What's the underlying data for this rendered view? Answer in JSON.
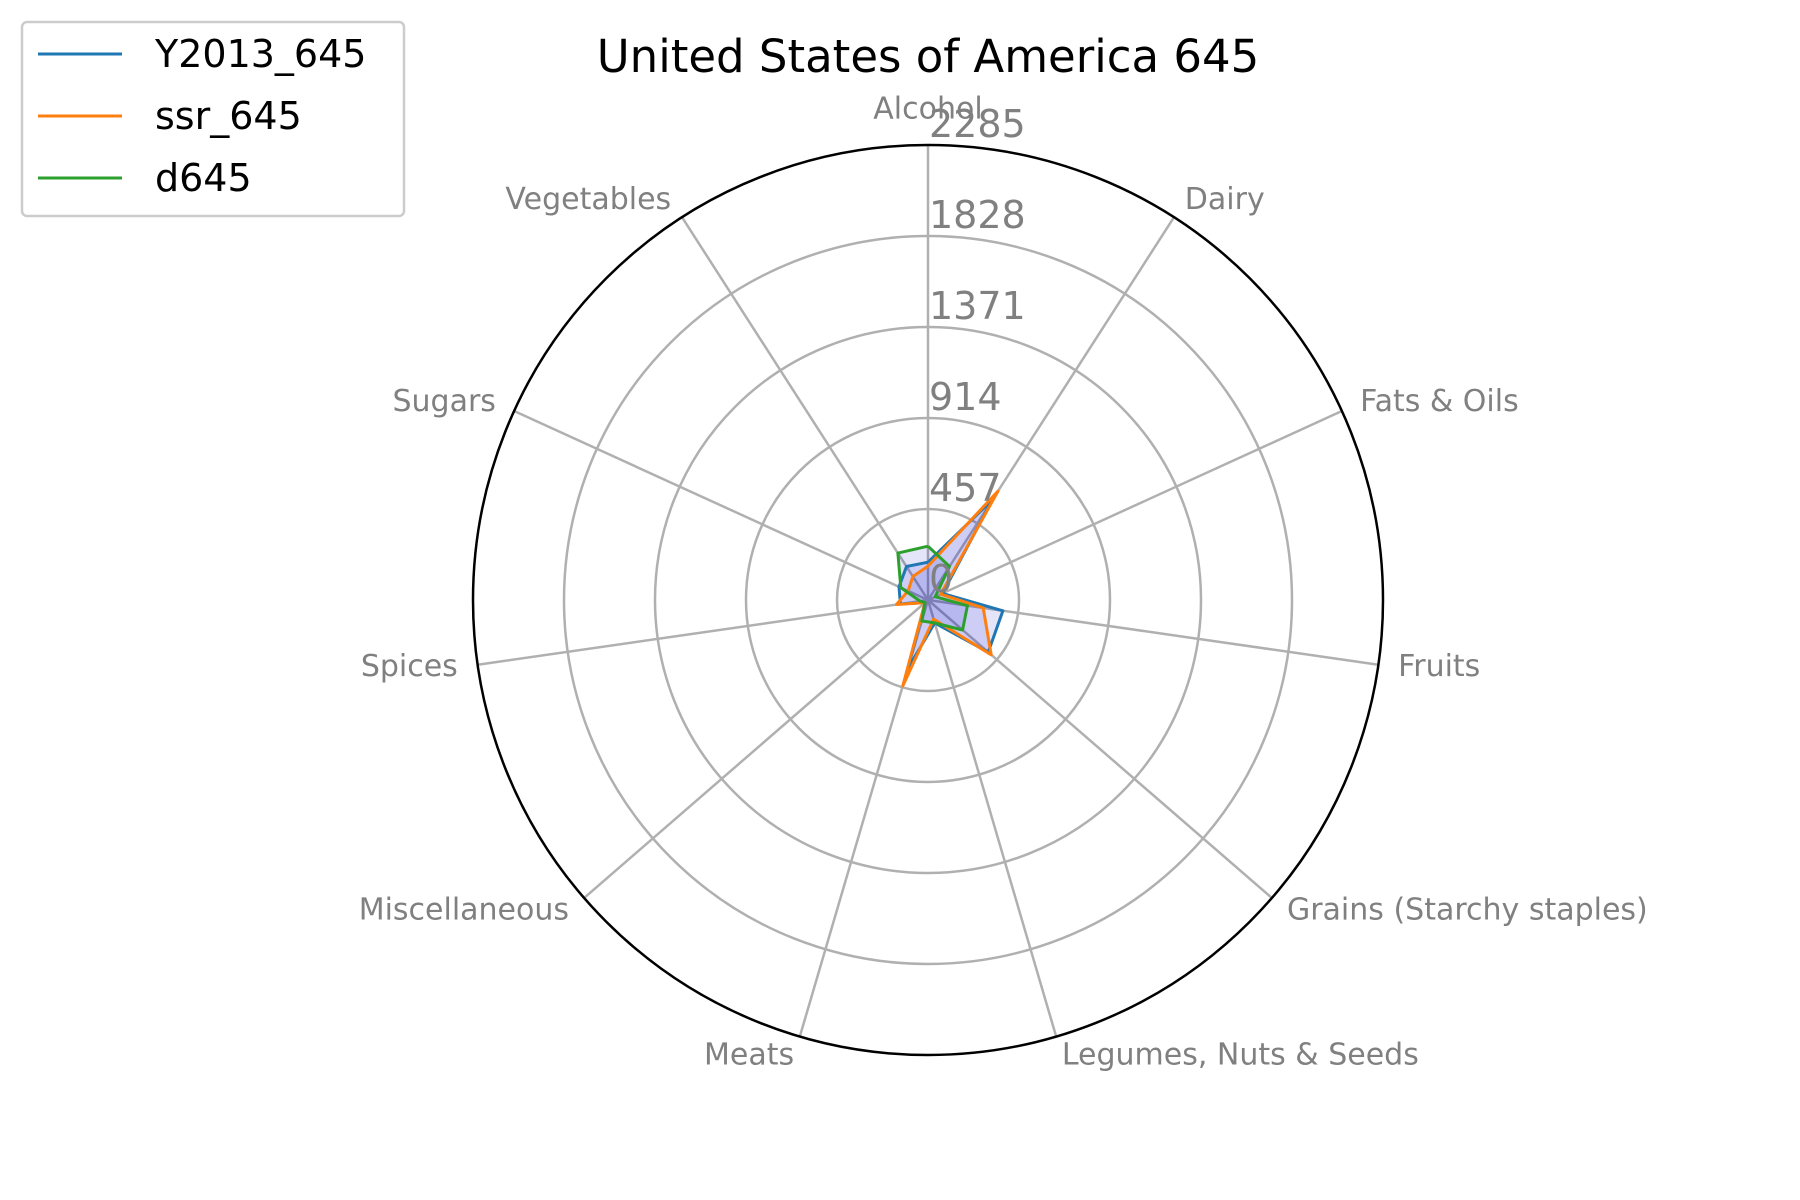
{
  "chart_data": {
    "type": "radar",
    "title": "United States of America 645",
    "categories": [
      "Alcohol",
      "Dairy",
      "Fats & Oils",
      "Fruits",
      "Grains (Starchy staples)",
      "Legumes, Nuts & Seeds",
      "Meats",
      "Miscellaneous",
      "Spices",
      "Sugars",
      "Vegetables"
    ],
    "rticks": [
      "0",
      "457",
      "914",
      "1371",
      "1828",
      "2285"
    ],
    "rmax": 2285,
    "grid": true,
    "legend_position": "top-left",
    "series": [
      {
        "name": "Y2013_645",
        "color": "#1f77b4",
        "values": [
          190,
          600,
          80,
          380,
          400,
          120,
          360,
          20,
          140,
          160,
          200
        ]
      },
      {
        "name": "ssr_645",
        "color": "#ff7f0e",
        "values": [
          170,
          650,
          70,
          280,
          420,
          100,
          450,
          20,
          160,
          110,
          140
        ]
      },
      {
        "name": "d645",
        "color": "#2ca02c",
        "values": [
          270,
          200,
          40,
          200,
          230,
          120,
          110,
          20,
          40,
          150,
          280
        ]
      }
    ],
    "fill_color": "#0000cc"
  }
}
